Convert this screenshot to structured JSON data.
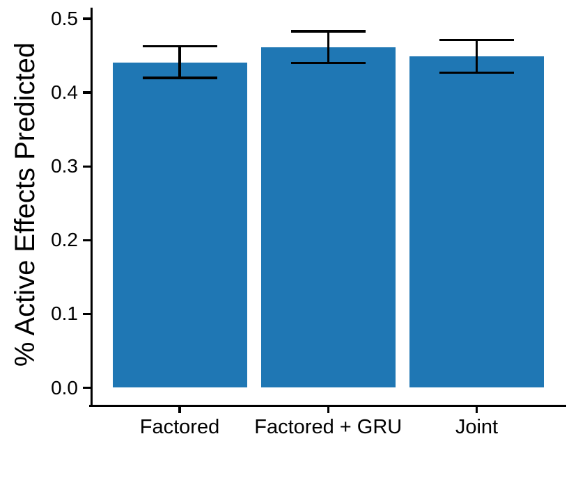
{
  "chart_data": {
    "type": "bar",
    "title": "",
    "xlabel": "",
    "ylabel": "% Active Effects Predicted",
    "categories": [
      "Factored",
      "Factored + GRU",
      "Joint"
    ],
    "values": [
      0.441,
      0.461,
      0.449
    ],
    "error_low": [
      0.42,
      0.44,
      0.427
    ],
    "error_high": [
      0.463,
      0.483,
      0.471
    ],
    "ylim": [
      0,
      0.5
    ],
    "yticks": [
      0.0,
      0.1,
      0.2,
      0.3,
      0.4,
      0.5
    ],
    "ytick_labels": [
      "0.0",
      "0.1",
      "0.2",
      "0.3",
      "0.4",
      "0.5"
    ],
    "grid": false,
    "legend": null,
    "bar_color": "#1f77b4",
    "error_color": "#000000",
    "axis_color": "#000000",
    "background_color": "#ffffff"
  }
}
